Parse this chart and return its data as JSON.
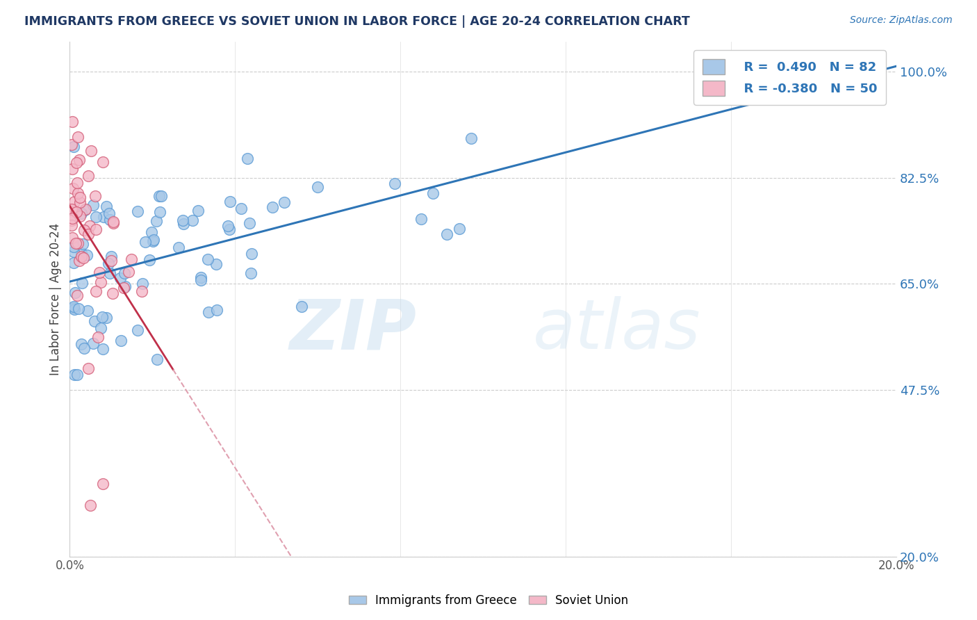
{
  "title": "IMMIGRANTS FROM GREECE VS SOVIET UNION IN LABOR FORCE | AGE 20-24 CORRELATION CHART",
  "source": "Source: ZipAtlas.com",
  "ylabel": "In Labor Force | Age 20-24",
  "xlim": [
    0.0,
    0.2
  ],
  "ylim": [
    0.2,
    1.05
  ],
  "plot_ylim": [
    0.2,
    1.05
  ],
  "yticks": [
    1.0,
    0.825,
    0.65,
    0.475,
    0.2
  ],
  "ytick_labels": [
    "100.0%",
    "82.5%",
    "65.0%",
    "47.5%",
    "20.0%"
  ],
  "xticks": [
    0.0,
    0.04,
    0.08,
    0.12,
    0.16,
    0.2
  ],
  "xtick_labels": [
    "0.0%",
    "",
    "",
    "",
    "",
    "20.0%"
  ],
  "greece_fill": "#a8c8e8",
  "greece_edge": "#5b9bd5",
  "soviet_fill": "#f4b8c8",
  "soviet_edge": "#d4607a",
  "trendline_greece_color": "#2e75b6",
  "trendline_soviet_solid_color": "#c0304a",
  "trendline_soviet_dash_color": "#e0a0b0",
  "R_greece": 0.49,
  "N_greece": 82,
  "R_soviet": -0.38,
  "N_soviet": 50,
  "title_color": "#1f3864",
  "source_color": "#2e75b6",
  "tick_color_right": "#2e75b6",
  "watermark_zip": "ZIP",
  "watermark_atlas": "atlas",
  "background_color": "#ffffff",
  "legend_box_greece": "#a8c8e8",
  "legend_box_soviet": "#f4b8c8"
}
